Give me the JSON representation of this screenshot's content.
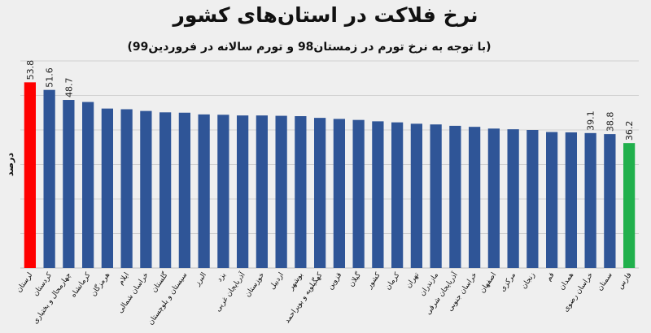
{
  "chart_data": {
    "type": "bar",
    "title": "نرخ فلاکت در استان‌های کشور",
    "subtitle": "(با توجه به نرخ تورم در زمستان98 و تورم سالانه در فروردین99)",
    "xlabel": "",
    "ylabel": "درصد",
    "ylim": [
      0,
      60
    ],
    "grid": true,
    "legend": "none",
    "categories": [
      "لرستان",
      "کردستان",
      "چهارمحال و بختیاری",
      "کرمانشاه",
      "هرمزگان",
      "ایلام",
      "خراسان شمالی",
      "گلستان",
      "سیستان و بلوچستان",
      "البرز",
      "یزد",
      "آذربایجان غربی",
      "خوزستان",
      "اردبیل",
      "بوشهر",
      "کهگیلویه و بویراحمد",
      "قزوین",
      "گیلان",
      "کشور",
      "کرمان",
      "تهران",
      "مازندران",
      "آذربایجان شرقی",
      "خراسان جنوبی",
      "اصفهان",
      "مرکزی",
      "زنجان",
      "قم",
      "همدان",
      "خراسان رضوی",
      "سمنان",
      "فارس"
    ],
    "values": [
      53.8,
      51.6,
      48.7,
      48.1,
      46.2,
      46.0,
      45.5,
      45.1,
      45.0,
      44.5,
      44.4,
      44.2,
      44.2,
      44.1,
      44.0,
      43.5,
      43.2,
      42.9,
      42.5,
      42.2,
      41.8,
      41.6,
      41.2,
      40.9,
      40.4,
      40.2,
      40.0,
      39.4,
      39.3,
      39.1,
      38.8,
      36.2
    ],
    "data_labels": {
      "0": "53.8",
      "1": "51.6",
      "2": "48.7",
      "29": "39.1",
      "30": "38.8",
      "31": "36.2"
    },
    "colors": {
      "default": "#2f5597",
      "highlight_high": "#ff0000",
      "highlight_low": "#21b04c",
      "gridline": "#d0d0d0",
      "axis": "#bfbfbf"
    },
    "highlight_high_index": 0,
    "highlight_low_index": 31
  }
}
